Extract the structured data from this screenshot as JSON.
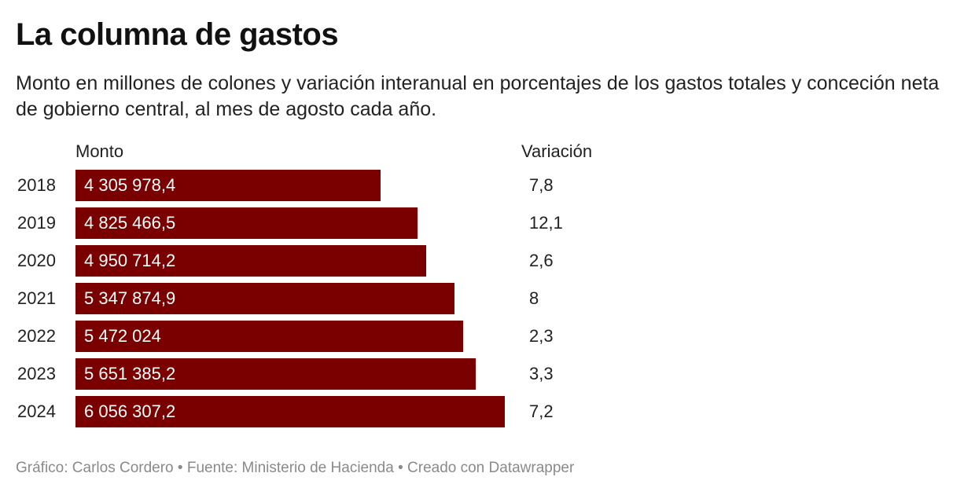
{
  "header": {
    "title": "La columna de gastos",
    "subtitle": "Monto en millones de colones y variación interanual en porcentajes de los gastos totales y conceción neta de gobierno central, al mes de agosto cada año."
  },
  "columns": {
    "amount": "Monto",
    "change": "Variación"
  },
  "footer": {
    "credit": "Gráfico: Carlos Cordero • Fuente: Ministerio de Hacienda • Creado con Datawrapper"
  },
  "colors": {
    "bar": "#7a0000"
  },
  "chart_data": {
    "type": "bar",
    "orientation": "horizontal",
    "title": "La columna de gastos",
    "subtitle": "Monto en millones de colones y variación interanual en porcentajes de los gastos totales y conceción neta de gobierno central, al mes de agosto cada año.",
    "categories": [
      "2018",
      "2019",
      "2020",
      "2021",
      "2022",
      "2023",
      "2024"
    ],
    "values": [
      4305978.4,
      4825466.5,
      4950714.2,
      5347874.9,
      5472024,
      5651385.2,
      6056307.2
    ],
    "value_labels": [
      "4 305 978,4",
      "4 825 466,5",
      "4 950 714,2",
      "5 347 874,9",
      "5 472 024",
      "5 651 385,2",
      "6 056 307,2"
    ],
    "variation": [
      7.8,
      12.1,
      2.6,
      8,
      2.3,
      3.3,
      7.2
    ],
    "variation_labels": [
      "7,8",
      "12,1",
      "2,6",
      "8",
      "2,3",
      "3,3",
      "7,2"
    ],
    "xlabel": "Monto",
    "ylabel": "",
    "xlim": [
      0,
      6056307.2
    ]
  }
}
